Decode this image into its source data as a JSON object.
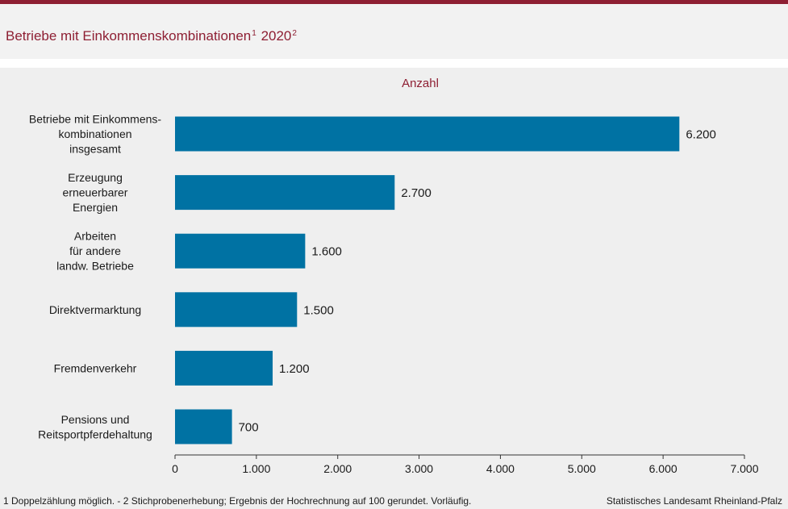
{
  "title": {
    "main": "Betriebe mit Einkommenskombinationen",
    "sup1": "1",
    "year": "2020",
    "sup2": "2"
  },
  "colors": {
    "accent": "#8e1f33",
    "bar": "#0072a3",
    "background": "#efefef"
  },
  "chart_data": {
    "type": "bar",
    "orientation": "horizontal",
    "subtitle": "Anzahl",
    "categories": [
      [
        "Betriebe mit Einkommens-",
        "kombinationen",
        "insgesamt"
      ],
      [
        "Erzeugung",
        "erneuerbarer",
        "Energien"
      ],
      [
        "Arbeiten",
        "für andere",
        "landw. Betriebe"
      ],
      [
        "Direktvermarktung"
      ],
      [
        "Fremdenverkehr"
      ],
      [
        "Pensions und",
        "Reitsportpferdehaltung"
      ]
    ],
    "values": [
      6200,
      2700,
      1600,
      1500,
      1200,
      700
    ],
    "value_labels": [
      "6.200",
      "2.700",
      "1.600",
      "1.500",
      "1.200",
      "700"
    ],
    "xlim": [
      0,
      7000
    ],
    "xticks": [
      0,
      1000,
      2000,
      3000,
      4000,
      5000,
      6000,
      7000
    ],
    "xtick_labels": [
      "0",
      "1.000",
      "2.000",
      "3.000",
      "4.000",
      "5.000",
      "6.000",
      "7.000"
    ],
    "grid": false,
    "legend": "none"
  },
  "footnote": "1 Doppelzählung  möglich. - 2 Stichprobenerhebung;  Ergebnis  der  Hochrechnung  auf  100  gerundet.  Vorläufig.",
  "source": "Statistisches Landesamt Rheinland-Pfalz"
}
